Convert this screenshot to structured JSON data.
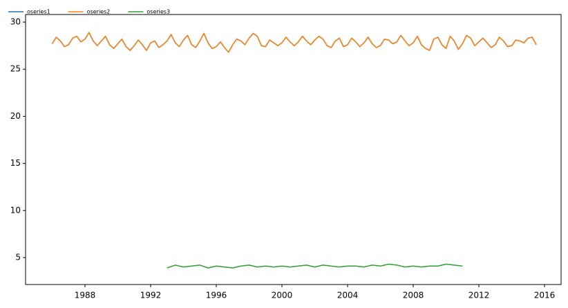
{
  "chart_data": {
    "type": "line",
    "xlim": [
      1984.38,
      2017.01
    ],
    "xticks": [
      1988,
      1992,
      1996,
      2000,
      2004,
      2008,
      2012,
      2016
    ],
    "ylim": [
      2.14,
      30.81
    ],
    "yticks": [
      5,
      10,
      15,
      20,
      25,
      30
    ],
    "grid": false,
    "legend": "top-left",
    "series": [
      {
        "name": "oseries1",
        "color": "#1f77b4",
        "x": [
          1986,
          1986.25,
          1986.5,
          1986.75,
          1987,
          1987.25,
          1987.5,
          1987.75,
          1988,
          1988.25,
          1988.5,
          1988.75,
          1989,
          1989.25,
          1989.5,
          1989.75,
          1990,
          1990.25,
          1990.5,
          1990.75,
          1991,
          1991.25,
          1991.5,
          1991.75,
          1992,
          1992.25,
          1992.5,
          1992.75,
          1993,
          1993.25,
          1993.5,
          1993.75,
          1994,
          1994.25,
          1994.5,
          1994.75,
          1995,
          1995.25,
          1995.5,
          1995.75,
          1996,
          1996.25,
          1996.5,
          1996.75,
          1997,
          1997.25,
          1997.5,
          1997.75,
          1998,
          1998.25,
          1998.5,
          1998.75,
          1999,
          1999.25,
          1999.5,
          1999.75,
          2000,
          2000.25,
          2000.5,
          2000.75,
          2001,
          2001.25,
          2001.5,
          2001.75,
          2002,
          2002.25,
          2002.5,
          2002.75,
          2003,
          2003.25,
          2003.5,
          2003.75,
          2004,
          2004.25,
          2004.5,
          2004.75,
          2005,
          2005.25,
          2005.5,
          2005.75,
          2006,
          2006.25,
          2006.5,
          2006.75,
          2007,
          2007.25,
          2007.5,
          2007.75,
          2008,
          2008.25,
          2008.5,
          2008.75,
          2009,
          2009.25,
          2009.5,
          2009.75,
          2010,
          2010.25,
          2010.5,
          2010.75,
          2011,
          2011.25,
          2011.5,
          2011.75,
          2012,
          2012.25,
          2012.5,
          2012.75,
          2013,
          2013.25,
          2013.5,
          2013.75,
          2014,
          2014.25,
          2014.5,
          2014.75,
          2015,
          2015.25,
          2015.5
        ],
        "values": [
          27.7,
          28.4,
          28.0,
          27.4,
          27.6,
          28.3,
          28.5,
          27.9,
          28.2,
          28.9,
          28.0,
          27.5,
          28.0,
          28.5,
          27.6,
          27.2,
          27.7,
          28.2,
          27.4,
          27.0,
          27.5,
          28.1,
          27.6,
          27.0,
          27.8,
          28.0,
          27.3,
          27.6,
          28.0,
          28.7,
          27.8,
          27.4,
          28.1,
          28.6,
          27.6,
          27.3,
          28.0,
          28.8,
          27.8,
          27.2,
          27.4,
          27.9,
          27.3,
          26.8,
          27.6,
          28.2,
          28.0,
          27.6,
          28.3,
          28.8,
          28.5,
          27.5,
          27.4,
          28.1,
          27.8,
          27.5,
          27.8,
          28.4,
          27.9,
          27.5,
          27.9,
          28.5,
          28.0,
          27.6,
          28.1,
          28.5,
          28.2,
          27.5,
          27.3,
          28.0,
          28.3,
          27.4,
          27.6,
          28.3,
          27.9,
          27.4,
          27.8,
          28.4,
          27.7,
          27.3,
          27.5,
          28.2,
          28.1,
          27.7,
          27.9,
          28.6,
          28.0,
          27.5,
          27.8,
          28.5,
          27.6,
          27.2,
          27.0,
          28.2,
          28.4,
          27.6,
          27.2,
          28.5,
          28.0,
          27.1,
          27.7,
          28.6,
          28.3,
          27.5,
          27.9,
          28.3,
          27.8,
          27.3,
          27.6,
          28.4,
          28.0,
          27.4,
          27.5,
          28.1,
          28.0,
          27.8,
          28.3,
          28.4,
          27.6
        ]
      },
      {
        "name": "oseries2",
        "color": "#ff7f0e",
        "x": [
          1986,
          1986.25,
          1986.5,
          1986.75,
          1987,
          1987.25,
          1987.5,
          1987.75,
          1988,
          1988.25,
          1988.5,
          1988.75,
          1989,
          1989.25,
          1989.5,
          1989.75,
          1990,
          1990.25,
          1990.5,
          1990.75,
          1991,
          1991.25,
          1991.5,
          1991.75,
          1992,
          1992.25,
          1992.5,
          1992.75,
          1993,
          1993.25,
          1993.5,
          1993.75,
          1994,
          1994.25,
          1994.5,
          1994.75,
          1995,
          1995.25,
          1995.5,
          1995.75,
          1996,
          1996.25,
          1996.5,
          1996.75,
          1997,
          1997.25,
          1997.5,
          1997.75,
          1998,
          1998.25,
          1998.5,
          1998.75,
          1999,
          1999.25,
          1999.5,
          1999.75,
          2000,
          2000.25,
          2000.5,
          2000.75,
          2001,
          2001.25,
          2001.5,
          2001.75,
          2002,
          2002.25,
          2002.5,
          2002.75,
          2003,
          2003.25,
          2003.5,
          2003.75,
          2004,
          2004.25,
          2004.5,
          2004.75,
          2005,
          2005.25,
          2005.5,
          2005.75,
          2006,
          2006.25,
          2006.5,
          2006.75,
          2007,
          2007.25,
          2007.5,
          2007.75,
          2008,
          2008.25,
          2008.5,
          2008.75,
          2009,
          2009.25,
          2009.5,
          2009.75,
          2010,
          2010.25,
          2010.5,
          2010.75,
          2011,
          2011.25,
          2011.5,
          2011.75,
          2012,
          2012.25,
          2012.5,
          2012.75,
          2013,
          2013.25,
          2013.5,
          2013.75,
          2014,
          2014.25,
          2014.5,
          2014.75,
          2015,
          2015.25,
          2015.5
        ],
        "values": [
          27.7,
          28.4,
          28.0,
          27.4,
          27.6,
          28.3,
          28.5,
          27.9,
          28.2,
          28.9,
          28.0,
          27.5,
          28.0,
          28.5,
          27.6,
          27.2,
          27.7,
          28.2,
          27.4,
          27.0,
          27.5,
          28.1,
          27.6,
          27.0,
          27.8,
          28.0,
          27.3,
          27.6,
          28.0,
          28.7,
          27.8,
          27.4,
          28.1,
          28.6,
          27.6,
          27.3,
          28.0,
          28.8,
          27.8,
          27.2,
          27.4,
          27.9,
          27.3,
          26.8,
          27.6,
          28.2,
          28.0,
          27.6,
          28.3,
          28.8,
          28.5,
          27.5,
          27.4,
          28.1,
          27.8,
          27.5,
          27.8,
          28.4,
          27.9,
          27.5,
          27.9,
          28.5,
          28.0,
          27.6,
          28.1,
          28.5,
          28.2,
          27.5,
          27.3,
          28.0,
          28.3,
          27.4,
          27.6,
          28.3,
          27.9,
          27.4,
          27.8,
          28.4,
          27.7,
          27.3,
          27.5,
          28.2,
          28.1,
          27.7,
          27.9,
          28.6,
          28.0,
          27.5,
          27.8,
          28.5,
          27.6,
          27.2,
          27.0,
          28.2,
          28.4,
          27.6,
          27.2,
          28.5,
          28.0,
          27.1,
          27.7,
          28.6,
          28.3,
          27.5,
          27.9,
          28.3,
          27.8,
          27.3,
          27.6,
          28.4,
          28.0,
          27.4,
          27.5,
          28.1,
          28.0,
          27.8,
          28.3,
          28.4,
          27.6
        ]
      },
      {
        "name": "oseries3",
        "color": "#2ca02c",
        "x": [
          1993,
          1993.5,
          1994,
          1994.5,
          1995,
          1995.5,
          1996,
          1996.5,
          1997,
          1997.5,
          1998,
          1998.5,
          1999,
          1999.5,
          2000,
          2000.5,
          2001,
          2001.5,
          2002,
          2002.5,
          2003,
          2003.5,
          2004,
          2004.5,
          2005,
          2005.5,
          2006,
          2006.5,
          2007,
          2007.5,
          2008,
          2008.5,
          2009,
          2009.5,
          2010,
          2010.5,
          2011
        ],
        "values": [
          3.9,
          4.2,
          4.0,
          4.1,
          4.2,
          3.9,
          4.1,
          4.0,
          3.9,
          4.1,
          4.2,
          4.0,
          4.1,
          4.0,
          4.1,
          4.0,
          4.1,
          4.2,
          4.0,
          4.2,
          4.1,
          4.0,
          4.1,
          4.1,
          4.0,
          4.2,
          4.1,
          4.3,
          4.2,
          4.0,
          4.1,
          4.0,
          4.1,
          4.1,
          4.3,
          4.2,
          4.1
        ]
      }
    ]
  }
}
